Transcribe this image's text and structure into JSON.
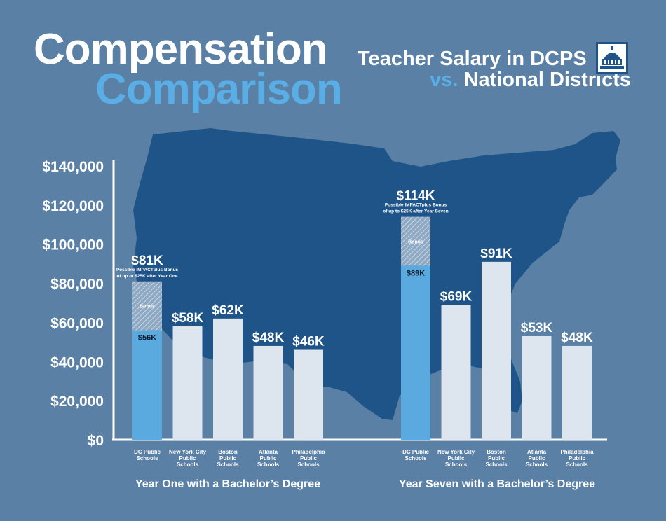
{
  "header": {
    "title_line1": "Compensation",
    "title_line2": "Comparison",
    "subtitle_line1": "Teacher Salary in DCPS",
    "subtitle_vs": "vs.",
    "subtitle_line2": "National Districts"
  },
  "colors": {
    "background": "#5a80a6",
    "map": "#1f5488",
    "dc_bar": "#5aaae0",
    "other_bar": "#dde5ee",
    "accent": "#5aaee6",
    "axis": "#ffffff"
  },
  "icons": [
    "capitol-dome-logo-icon",
    "us-map-silhouette"
  ],
  "chart_data": [
    {
      "type": "bar",
      "title": "Year One with a Bachelor’s Degree",
      "categories": [
        "DC Public Schools",
        "New York City Public Schools",
        "Boston Public Schools",
        "Atlanta Public Schools",
        "Philadelphia Public Schools"
      ],
      "series": [
        {
          "values": [
            56000,
            58000,
            62000,
            48000,
            46000
          ]
        },
        {
          "name": "Bonus",
          "values": [
            25000,
            0,
            0,
            0,
            0
          ]
        }
      ],
      "stacked": true,
      "value_labels": [
        "$81K",
        "$58K",
        "$62K",
        "$48K",
        "$46K"
      ],
      "inner_label": "$56K",
      "bonus_label": "Bonus",
      "bonus_note": "Possible IMPACTplus Bonus of up to $25K after Year One",
      "ylim": [
        0,
        140000
      ],
      "yticks": [
        "$0",
        "$20,000",
        "$40,000",
        "$60,000",
        "$80,000",
        "$100,000",
        "$120,000",
        "$140,000"
      ]
    },
    {
      "type": "bar",
      "title": "Year Seven with a Bachelor’s Degree",
      "categories": [
        "DC Public Schools",
        "New York City Public Schools",
        "Boston Public Schools",
        "Atlanta Public Schools",
        "Philadelphia Public Schools"
      ],
      "series": [
        {
          "values": [
            89000,
            69000,
            91000,
            53000,
            48000
          ]
        },
        {
          "name": "Bonus",
          "values": [
            25000,
            0,
            0,
            0,
            0
          ]
        }
      ],
      "stacked": true,
      "value_labels": [
        "$114K",
        "$69K",
        "$91K",
        "$53K",
        "$48K"
      ],
      "inner_label": "$89K",
      "bonus_label": "Bonus",
      "bonus_note": "Possible IMPACTplus Bonus of up to $25K after Year Seven",
      "ylim": [
        0,
        140000
      ]
    }
  ]
}
